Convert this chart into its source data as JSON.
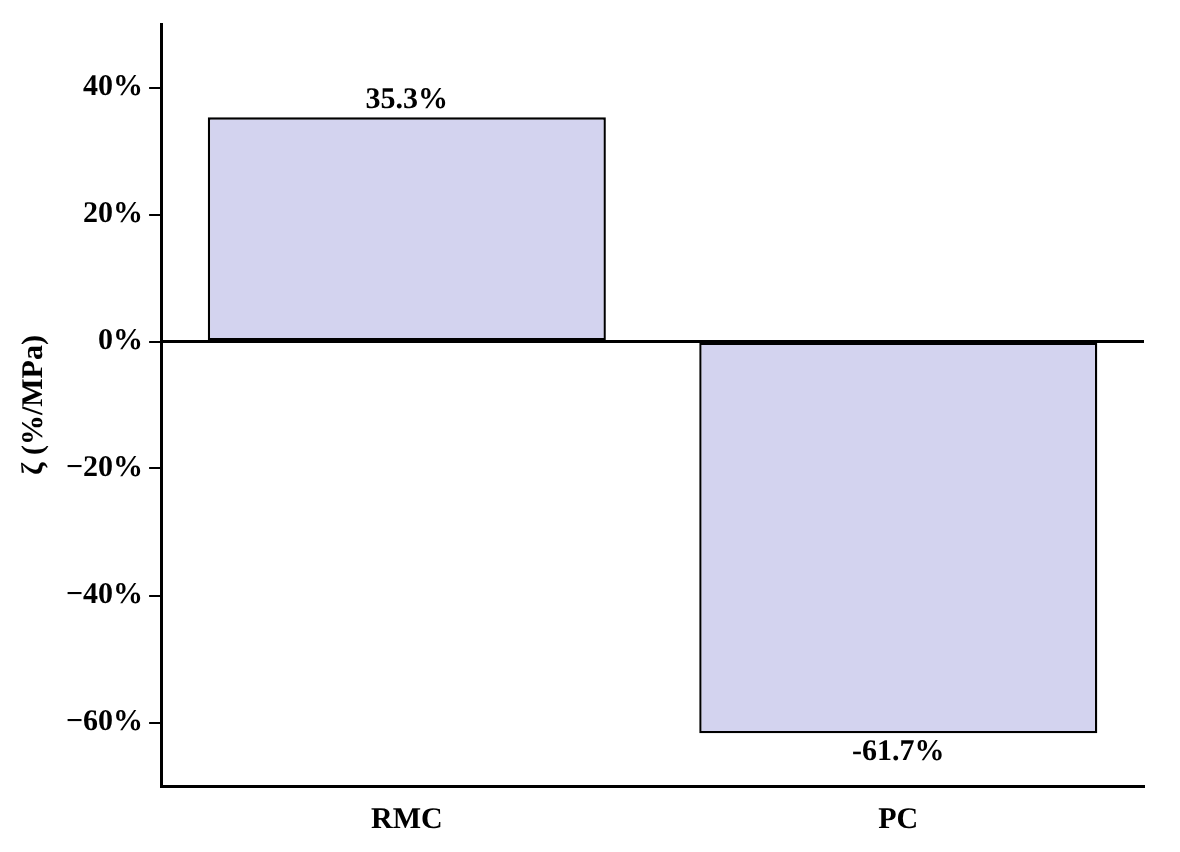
{
  "chart_data": {
    "type": "bar",
    "ylabel": "ζ (%/MPa)",
    "categories": [
      "RMC",
      "PC"
    ],
    "values": [
      35.3,
      -61.7
    ],
    "value_labels": [
      "35.3%",
      "-61.7%"
    ],
    "color": "#d3d3ef",
    "ylim": [
      -70,
      50
    ],
    "yticks": [
      {
        "value": -60,
        "label": "−60%"
      },
      {
        "value": -40,
        "label": "−40%"
      },
      {
        "value": -20,
        "label": "−20%"
      },
      {
        "value": 0,
        "label": "0%"
      },
      {
        "value": 20,
        "label": "20%"
      },
      {
        "value": 40,
        "label": "40%"
      }
    ],
    "ref_lines": [
      {
        "axis": "y",
        "value": 0,
        "color": "#000000"
      }
    ],
    "grid": false,
    "legend": false
  }
}
